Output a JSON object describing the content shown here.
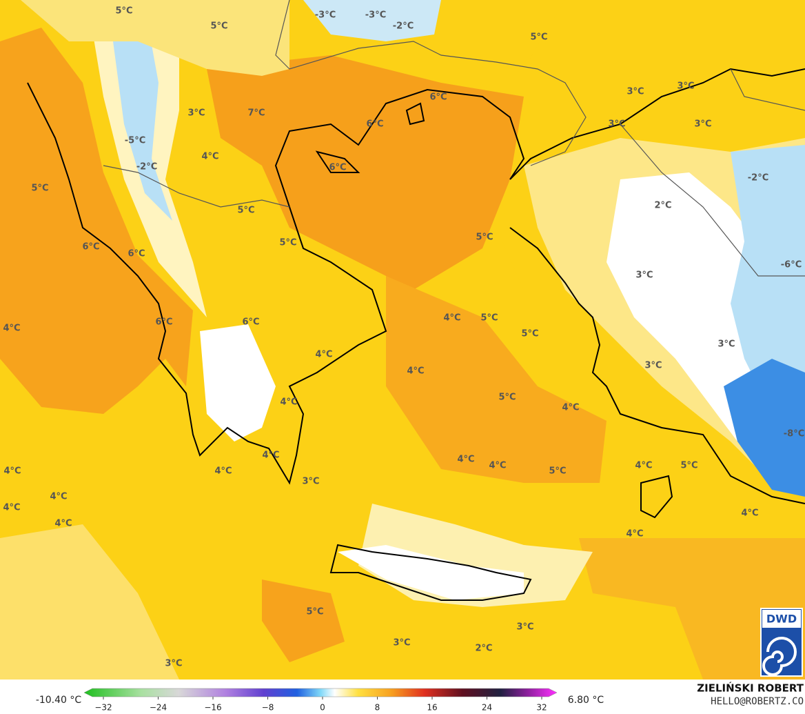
{
  "map": {
    "labels": [
      "5°C",
      "-3°C",
      "-3°C",
      "-2°C",
      "5°C",
      "5°C",
      "3°C",
      "3°C",
      "6°C",
      "7°C",
      "3°C",
      "6°C",
      "3°C",
      "3°C",
      "-5°C",
      "4°C",
      "-2°C",
      "6°C",
      "-2°C",
      "5°C",
      "2°C",
      "5°C",
      "5°C",
      "5°C",
      "6°C",
      "6°C",
      "-6°C",
      "3°C",
      "4°C",
      "6°C",
      "6°C",
      "4°C",
      "5°C",
      "5°C",
      "3°C",
      "4°C",
      "3°C",
      "4°C",
      "5°C",
      "4°C",
      "4°C",
      "-8°C",
      "4°C",
      "4°C",
      "4°C",
      "4°C",
      "5°C",
      "4°C",
      "4°C",
      "5°C",
      "3°C",
      "4°C",
      "4°C",
      "4°C",
      "4°C",
      "4°C",
      "5°C",
      "3°C",
      "3°C",
      "2°C",
      "3°C"
    ]
  },
  "colorbar": {
    "min_label": "-10.40 °C",
    "max_label": "6.80 °C",
    "ticks": [
      {
        "value": -32,
        "label": "−32"
      },
      {
        "value": -24,
        "label": "−24"
      },
      {
        "value": -16,
        "label": "−16"
      },
      {
        "value": -8,
        "label": "−8"
      },
      0,
      8,
      16,
      24,
      32
    ]
  },
  "credits": {
    "author": "ZIELIŃSKI ROBERT",
    "contact": "HELLO@ROBERTZ.CO",
    "logo": "DWD"
  }
}
